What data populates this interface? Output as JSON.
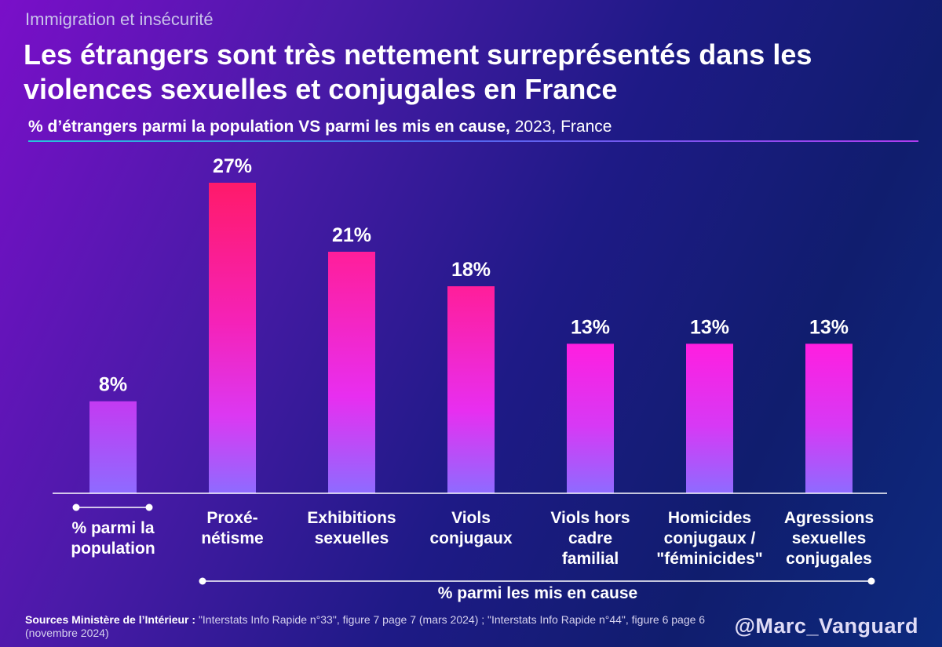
{
  "header": {
    "kicker": "Immigration et insécurité",
    "title": "Les étrangers sont très nettement surreprésentés dans les violences sexuelles et conjugales en France",
    "subtitle_bold": "% d’étrangers parmi la population VS parmi les mis en cause,",
    "subtitle_rest": " 2023, France"
  },
  "chart_data": {
    "type": "bar",
    "title": "Les étrangers sont très nettement surreprésentés dans les violences sexuelles et conjugales en France",
    "categories": [
      "% parmi la population",
      "Proxé-nétisme",
      "Exhibitions sexuelles",
      "Viols conjugaux",
      "Viols hors cadre familial",
      "Homicides conjugaux / \"féminicides\"",
      "Agressions sexuelles conjugales"
    ],
    "category_lines": [
      [
        "% parmi la",
        "population"
      ],
      [
        "Proxé-",
        "nétisme"
      ],
      [
        "Exhibitions",
        "sexuelles"
      ],
      [
        "Viols",
        "conjugaux"
      ],
      [
        "Viols hors",
        "cadre",
        "familial"
      ],
      [
        "Homicides",
        "conjugaux /",
        "\"féminicides\""
      ],
      [
        "Agressions",
        "sexuelles",
        "conjugales"
      ]
    ],
    "values": [
      8,
      27,
      21,
      18,
      13,
      13,
      13
    ],
    "value_labels": [
      "8%",
      "27%",
      "21%",
      "18%",
      "13%",
      "13%",
      "13%"
    ],
    "ylim": [
      0,
      27
    ],
    "grid": false,
    "group_label": "% parmi les mis en cause",
    "colors": {
      "bar_top_high": "#ff1a6a",
      "bar_top": "#ff1ecf",
      "bar_mid": "#e52ff0",
      "bar_bottom": "#8e6bff"
    }
  },
  "footer": {
    "sources_bold": "Sources Ministère de l’Intérieur :",
    "sources_rest": " \"Interstats Info Rapide n°33\", figure 7 page 7 (mars 2024) ; \"Interstats Info Rapide n°44\", figure 6 page 6 (novembre 2024)",
    "handle": "@Marc_Vanguard"
  }
}
